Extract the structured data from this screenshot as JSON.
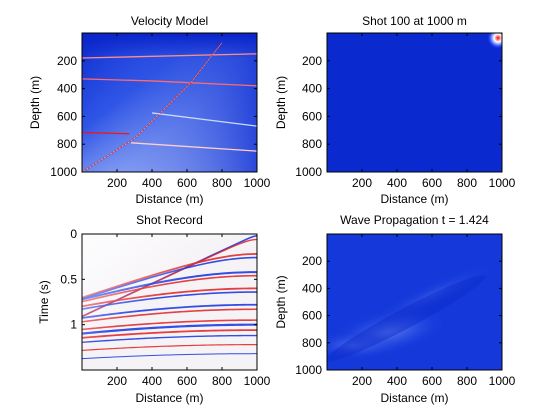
{
  "chart_data": [
    {
      "id": "velocity",
      "type": "heatmap",
      "title": "Velocity Model",
      "xlabel": "Distance (m)",
      "ylabel": "Depth (m)",
      "xlim": [
        0,
        1000
      ],
      "ylim": [
        0,
        1000
      ],
      "y_reversed": true,
      "xticks": [
        200,
        400,
        600,
        800,
        1000
      ],
      "yticks": [
        200,
        400,
        600,
        800,
        1000
      ],
      "xtick_labels": [
        "200",
        "400",
        "600",
        "800",
        "1000"
      ],
      "ytick_labels": [
        "200",
        "400",
        "600",
        "800",
        "1000"
      ],
      "colormap": "blue-white-red",
      "overlays": {
        "layer_interfaces": [
          {
            "color": "#ff8c8c",
            "points": [
              [
                0,
                180
              ],
              [
                1000,
                150
              ]
            ]
          },
          {
            "color": "#ff6b6b",
            "points": [
              [
                0,
                330
              ],
              [
                400,
                345
              ],
              [
                1000,
                380
              ]
            ]
          },
          {
            "color": "#ff1010",
            "points": [
              [
                0,
                715
              ],
              [
                270,
                725
              ]
            ]
          },
          {
            "color": "#ffd0d0",
            "points": [
              [
                280,
                790
              ],
              [
                1000,
                850
              ]
            ]
          },
          {
            "color": "#c8d8ff",
            "points": [
              [
                400,
                575
              ],
              [
                1000,
                670
              ]
            ]
          }
        ],
        "fault_line": {
          "color": "#d00000",
          "points": [
            [
              0,
              1000
            ],
            [
              300,
              760
            ],
            [
              620,
              360
            ],
            [
              800,
              70
            ]
          ]
        }
      }
    },
    {
      "id": "shot",
      "type": "heatmap",
      "title": "Shot 100 at 1000 m",
      "xlabel": "Distance (m)",
      "ylabel": "Depth (m)",
      "xlim": [
        0,
        1000
      ],
      "ylim": [
        0,
        1000
      ],
      "y_reversed": true,
      "xticks": [
        200,
        400,
        600,
        800,
        1000
      ],
      "yticks": [
        200,
        400,
        600,
        800,
        1000
      ],
      "xtick_labels": [
        "200",
        "400",
        "600",
        "800",
        "1000"
      ],
      "ytick_labels": [
        "200",
        "400",
        "600",
        "800",
        "1000"
      ],
      "colormap": "blue-white-red",
      "source": {
        "x": 1000,
        "z": 0
      }
    },
    {
      "id": "record",
      "type": "heatmap",
      "title": "Shot Record",
      "xlabel": "Distance (m)",
      "ylabel": "Time (s)",
      "xlim": [
        0,
        1000
      ],
      "ylim": [
        0,
        1.5
      ],
      "y_reversed": true,
      "xticks": [
        200,
        400,
        600,
        800,
        1000
      ],
      "yticks": [
        0,
        0.5,
        1
      ],
      "xtick_labels": [
        "200",
        "400",
        "600",
        "800",
        "1000"
      ],
      "ytick_labels": [
        "0",
        "0.5",
        "1"
      ],
      "colormap": "blue-white-red",
      "source_x": 1000
    },
    {
      "id": "wave",
      "type": "heatmap",
      "title": "Wave Propagation t = 1.424",
      "xlabel": "Distance (m)",
      "ylabel": "Depth (m)",
      "xlim": [
        0,
        1000
      ],
      "ylim": [
        0,
        1000
      ],
      "y_reversed": true,
      "xticks": [
        200,
        400,
        600,
        800,
        1000
      ],
      "yticks": [
        200,
        400,
        600,
        800,
        1000
      ],
      "xtick_labels": [
        "200",
        "400",
        "600",
        "800",
        "1000"
      ],
      "ytick_labels": [
        "200",
        "400",
        "600",
        "800",
        "1000"
      ],
      "colormap": "blue-white-red",
      "time": 1.424
    }
  ]
}
